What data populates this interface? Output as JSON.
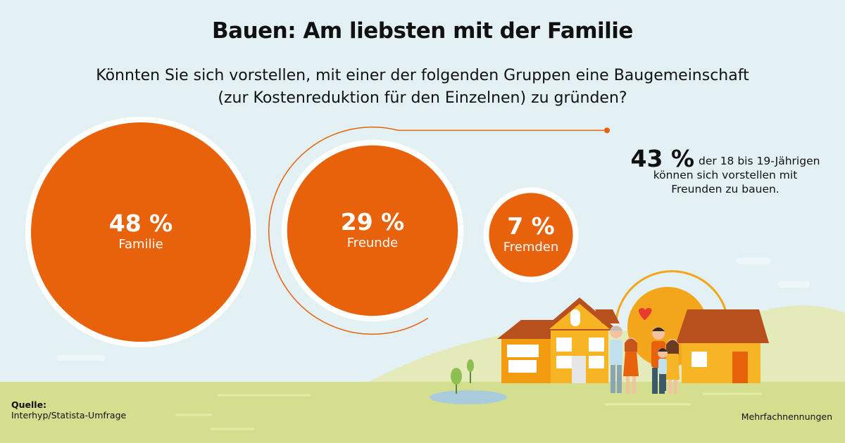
{
  "title": "Bauen: Am liebsten mit der Familie",
  "subtitle_line1": "Könnten Sie sich vorstellen, mit einer der folgenden Gruppen eine Baugemeinschaft",
  "subtitle_line2": "(zur Kostenreduktion für den Einzelnen) zu gründen?",
  "colors": {
    "accent": "#e8620c",
    "sky": "#e4f1f4",
    "grass": "#d3df8e",
    "hill": "#e4eab9"
  },
  "chart_data": {
    "type": "bubble",
    "unit": "%",
    "categories": [
      "Familie",
      "Freunde",
      "Fremden"
    ],
    "values": [
      48,
      29,
      7
    ],
    "value_labels": [
      "48 %",
      "29 %",
      "7 %"
    ]
  },
  "annotation": {
    "value": "43 %",
    "text_line1": "der 18 bis 19-Jährigen",
    "text_line2": "können sich vorstellen mit",
    "text_line3": "Freunden zu bauen."
  },
  "source": {
    "label": "Quelle:",
    "text": "Interhyp/Statista-Umfrage"
  },
  "footnote": "Mehrfachnennungen"
}
